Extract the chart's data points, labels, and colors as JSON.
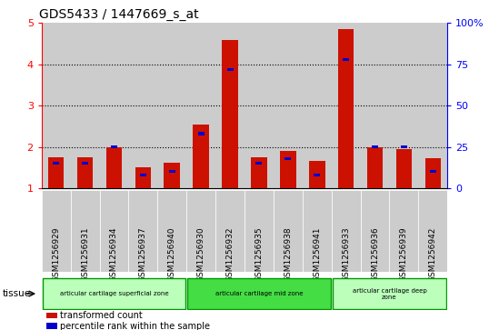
{
  "title": "GDS5433 / 1447669_s_at",
  "samples": [
    "GSM1256929",
    "GSM1256931",
    "GSM1256934",
    "GSM1256937",
    "GSM1256940",
    "GSM1256930",
    "GSM1256932",
    "GSM1256935",
    "GSM1256938",
    "GSM1256941",
    "GSM1256933",
    "GSM1256936",
    "GSM1256939",
    "GSM1256942"
  ],
  "transformed_count": [
    1.75,
    1.75,
    2.0,
    1.5,
    1.62,
    2.55,
    4.6,
    1.75,
    1.9,
    1.65,
    4.85,
    2.0,
    1.95,
    1.72
  ],
  "percentile_rank_pct": [
    15,
    15,
    25,
    8,
    10,
    33,
    72,
    15,
    18,
    8,
    78,
    25,
    25,
    10
  ],
  "ylim_left": [
    1,
    5
  ],
  "ylim_right": [
    0,
    100
  ],
  "yticks_left": [
    1,
    2,
    3,
    4,
    5
  ],
  "yticks_right": [
    0,
    25,
    50,
    75,
    100
  ],
  "bar_color_red": "#cc1100",
  "bar_color_blue": "#0000cc",
  "tissue_groups": [
    {
      "label": "articular cartilage superficial zone",
      "start": 0,
      "end": 5,
      "color": "#bbffbb"
    },
    {
      "label": "articular cartilage mid zone",
      "start": 5,
      "end": 10,
      "color": "#44dd44"
    },
    {
      "label": "articular cartilage deep\nzone",
      "start": 10,
      "end": 14,
      "color": "#bbffbb"
    }
  ],
  "tissue_label": "tissue",
  "legend_items": [
    {
      "label": "transformed count",
      "color": "#cc1100"
    },
    {
      "label": "percentile rank within the sample",
      "color": "#0000cc"
    }
  ],
  "bar_width": 0.55,
  "col_bg_color": "#cccccc",
  "plot_bg_color": "#ffffff",
  "title_fontsize": 10,
  "tick_fontsize": 6.5,
  "label_fontsize": 7
}
